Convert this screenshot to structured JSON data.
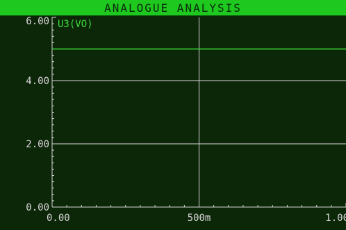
{
  "window": {
    "title": "ANALOGUE ANALYSIS"
  },
  "colors": {
    "background": "#0c2608",
    "title_bar": "#1ec81e",
    "title_text": "#0a2a0a",
    "axis": "#d8d8d8",
    "grid": "#d8d8d8",
    "tick_label": "#d8d8d8",
    "trace": "#3cdc3c"
  },
  "chart_data": {
    "type": "line",
    "title": "",
    "xlabel": "",
    "ylabel": "",
    "xlim": [
      0,
      1
    ],
    "ylim": [
      0,
      6
    ],
    "x_ticks": [
      {
        "value": 0,
        "label": "0.00"
      },
      {
        "value": 0.5,
        "label": "500m"
      },
      {
        "value": 1,
        "label": "1.00"
      }
    ],
    "y_ticks": [
      {
        "value": 0,
        "label": "0.00"
      },
      {
        "value": 2,
        "label": "2.00"
      },
      {
        "value": 4,
        "label": "4.00"
      },
      {
        "value": 6,
        "label": "6.00"
      }
    ],
    "x_minor_step": 0.05,
    "y_minor_step": 0.2,
    "grid": true,
    "legend_position": "top-left",
    "series": [
      {
        "name": "U3(VO)",
        "x": [
          0,
          1
        ],
        "y": [
          5,
          5
        ]
      }
    ]
  }
}
